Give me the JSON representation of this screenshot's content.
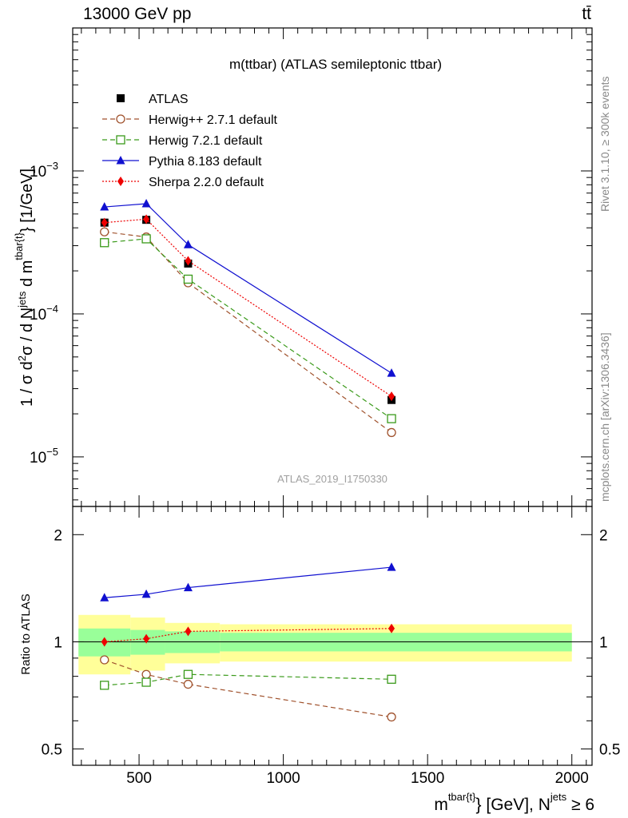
{
  "header": {
    "left": "13000 GeV pp",
    "right": "tt̄"
  },
  "side_labels": {
    "top": "Rivet 3.1.10, ≥ 300k events",
    "bottom": "mcplots.cern.ch [arXiv:1306.3436]"
  },
  "chart_data": {
    "type": "line",
    "title": "m(ttbar) (ATLAS semileptonic ttbar)",
    "watermark": "ATLAS_2019_I1750330",
    "xlabel": "m^{tbar{t}} [GeV], N^{jets} ≥ 6",
    "xlabel_parts": {
      "m": "m",
      "m_sup": "tbar{t}",
      "mid": "} [GeV], N",
      "n_sup": "jets",
      "tail": " ≥ 6"
    },
    "ylabel": "1 / σ d²σ / d N^{jets} d m^{tbar{t}} [1/GeV]",
    "ylabel_parts": {
      "a": "1 / σ d",
      "a_sup": "2",
      "b": "σ / d N",
      "b_sup": "jets",
      "c": " d m",
      "c_sup": "tbar{t}",
      "d": "} [1/GeV]"
    },
    "ratio_ylabel": "Ratio to ATLAS",
    "xlim": [
      270,
      2070
    ],
    "ylim": [
      4.5e-06,
      0.01
    ],
    "yscale": "log",
    "ratio_ylim": [
      0.45,
      2.4
    ],
    "x_ticks": [
      500,
      1000,
      1500,
      2000
    ],
    "x_tick_labels": [
      "500",
      "1000",
      "1500",
      "2000"
    ],
    "y_major_ticks": [
      1e-05,
      0.0001,
      0.001
    ],
    "y_tick_labels": [
      {
        "base": "10",
        "exp": "−5"
      },
      {
        "base": "10",
        "exp": "−4"
      },
      {
        "base": "10",
        "exp": "−3"
      }
    ],
    "ratio_ticks": [
      0.5,
      1,
      2
    ],
    "ratio_tick_labels": [
      "0.5",
      "1",
      "2"
    ],
    "bins": [
      {
        "lo": 290,
        "hi": 470,
        "x": 380
      },
      {
        "lo": 470,
        "hi": 590,
        "x": 525
      },
      {
        "lo": 590,
        "hi": 780,
        "x": 670
      },
      {
        "lo": 780,
        "hi": 2000,
        "x": 1375
      }
    ],
    "data": {
      "name": "ATLAS",
      "values": [
        0.000435,
        0.000455,
        0.000225,
        2.5e-05
      ],
      "stat_band": [
        0.09,
        0.08,
        0.07,
        0.06
      ],
      "total_band": [
        0.19,
        0.17,
        0.13,
        0.12
      ]
    },
    "series": [
      {
        "name": "Herwig++ 2.7.1 default",
        "values": [
          0.000375,
          0.000345,
          0.000165,
          1.48e-05
        ],
        "ratio": [
          0.89,
          0.81,
          0.76,
          0.615
        ],
        "color": "#a0522d",
        "marker": "open-circle",
        "dash": "6,4"
      },
      {
        "name": "Herwig 7.2.1 default",
        "values": [
          0.000315,
          0.000335,
          0.000175,
          1.85e-05
        ],
        "ratio": [
          0.755,
          0.77,
          0.81,
          0.785
        ],
        "color": "#3a9a1a",
        "marker": "open-square",
        "dash": "6,4"
      },
      {
        "name": "Pythia 8.183 default",
        "values": [
          0.00056,
          0.00059,
          0.000305,
          3.85e-05
        ],
        "ratio": [
          1.33,
          1.36,
          1.42,
          1.62
        ],
        "color": "#1010d0",
        "marker": "filled-triangle",
        "dash": ""
      },
      {
        "name": "Sherpa 2.2.0 default",
        "values": [
          0.000435,
          0.00046,
          0.000235,
          2.65e-05
        ],
        "ratio": [
          1.0,
          1.02,
          1.07,
          1.09
        ],
        "color": "#ee0000",
        "marker": "filled-diamond",
        "dash": "2,2"
      }
    ],
    "legend_position": "top-left"
  },
  "colors": {
    "band_total": "#ffff99",
    "band_stat": "#99ff99",
    "watermark": "#a0a0a0",
    "side_text": "#888888"
  }
}
